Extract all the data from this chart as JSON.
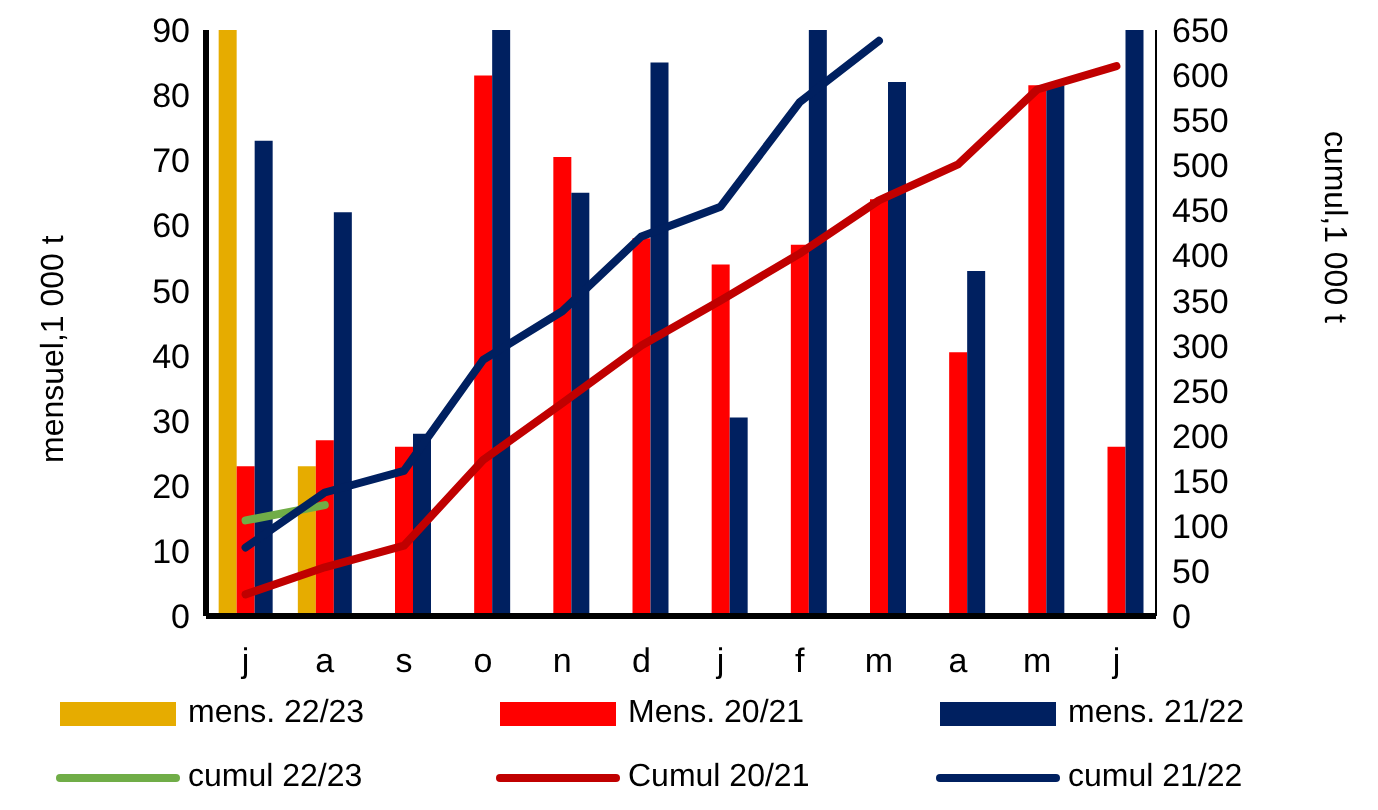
{
  "chart_data": {
    "type": "bar",
    "categories": [
      "j",
      "a",
      "s",
      "o",
      "n",
      "d",
      "j",
      "f",
      "m",
      "a",
      "m",
      "j"
    ],
    "ylabel": "mensuel,1 000 t",
    "y2label": "cumul,1 000 t",
    "ylim": [
      0,
      90
    ],
    "yticks": [
      0,
      10,
      20,
      30,
      40,
      50,
      60,
      70,
      80,
      90
    ],
    "y2lim": [
      0,
      650
    ],
    "y2ticks": [
      0,
      50,
      100,
      150,
      200,
      250,
      300,
      350,
      400,
      450,
      500,
      550,
      600,
      650
    ],
    "grid": false,
    "legend": "bottom",
    "series": [
      {
        "name": "mens. 22/23",
        "color": "#e6ac00",
        "values": [
          90,
          23,
          null,
          null,
          null,
          null,
          null,
          null,
          null,
          null,
          null,
          null
        ]
      },
      {
        "name": "Mens. 20/21",
        "color": "#ff0000",
        "values": [
          23,
          27,
          26,
          83,
          70.5,
          58,
          54,
          57,
          64,
          40.5,
          81.5,
          26
        ]
      },
      {
        "name": "mens. 21/22",
        "color": "#002060",
        "values": [
          73,
          62,
          28,
          90,
          65,
          85,
          30.5,
          90,
          82,
          53,
          81.5,
          90
        ]
      },
      {
        "name": "cumul 22/23",
        "type": "line",
        "axis": "y2",
        "color": "#70ad47",
        "values": [
          106,
          123,
          null,
          null,
          null,
          null,
          null,
          null,
          null,
          null,
          null,
          null
        ]
      },
      {
        "name": "Cumul 20/21",
        "type": "line",
        "axis": "y2",
        "color": "#c00000",
        "values": [
          24,
          54,
          78,
          173,
          236,
          300,
          350,
          402,
          461,
          501,
          584,
          610
        ]
      },
      {
        "name": "cumul 21/22",
        "type": "line",
        "axis": "y2",
        "color": "#002060",
        "values": [
          76,
          137,
          161,
          284,
          338,
          421,
          454,
          570,
          638,
          null,
          null,
          null
        ]
      }
    ]
  }
}
